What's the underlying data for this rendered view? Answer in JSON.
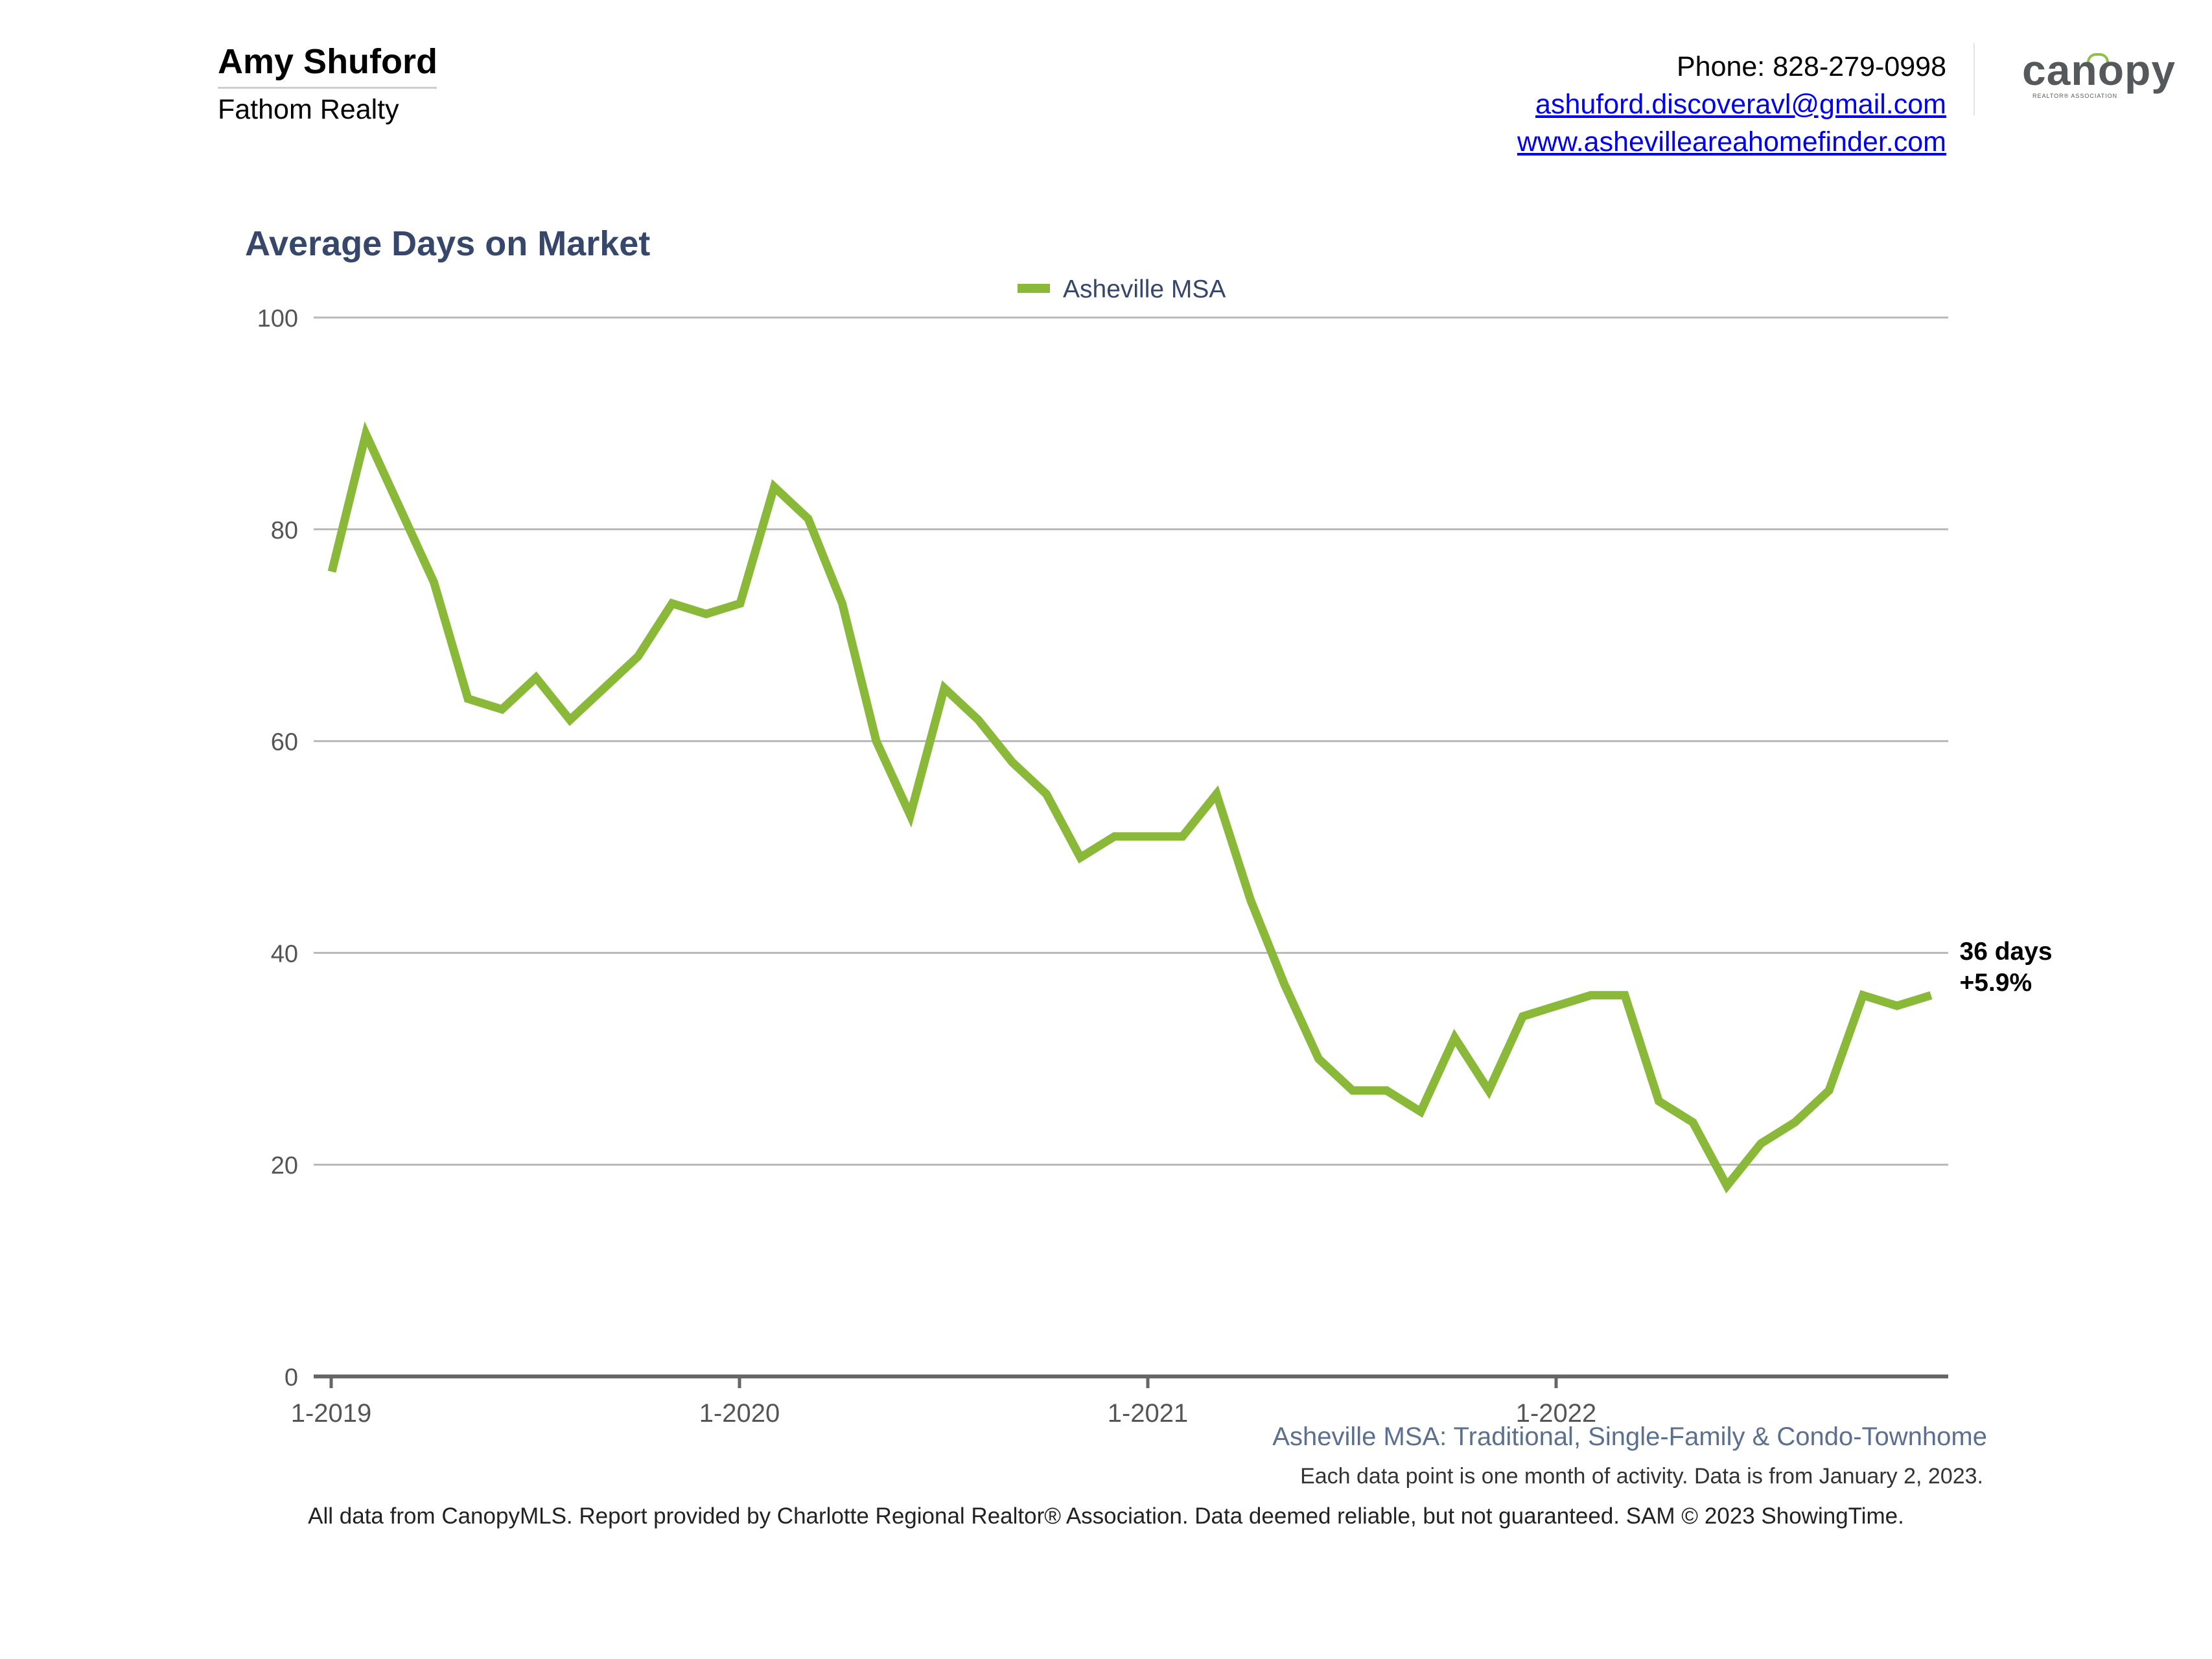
{
  "header": {
    "agent_name": "Amy Shuford",
    "company": "Fathom Realty",
    "phone": "Phone: 828-279-0998",
    "email": "ashuford.discoveravl@gmail.com",
    "website": "www.ashevilleareahomefinder.com",
    "logo_text": "canopy",
    "logo_subtext": "REALTOR® ASSOCIATION"
  },
  "colors": {
    "series_line": "#8ab93a",
    "title": "#36476b",
    "grid": "#b8b8b8",
    "axis": "#666666"
  },
  "chart_data": {
    "type": "line",
    "title": "Average Days on Market",
    "xlabel": "",
    "ylabel": "",
    "ylim": [
      0,
      100
    ],
    "yticks": [
      0,
      20,
      40,
      60,
      80,
      100
    ],
    "xtick_labels": [
      "1-2019",
      "1-2020",
      "1-2021",
      "1-2022"
    ],
    "grid": true,
    "legend": "top-center",
    "series": [
      {
        "name": "Asheville MSA",
        "start": "2019-01",
        "values": [
          76,
          89,
          82,
          75,
          64,
          63,
          66,
          62,
          65,
          68,
          73,
          72,
          73,
          84,
          81,
          73,
          60,
          53,
          65,
          62,
          58,
          55,
          49,
          51,
          51,
          51,
          55,
          45,
          37,
          30,
          27,
          27,
          25,
          32,
          27,
          34,
          35,
          36,
          36,
          26,
          24,
          18,
          22,
          24,
          27,
          36,
          35,
          36
        ]
      }
    ],
    "end_label": {
      "value": "36 days",
      "change": "+5.9%"
    }
  },
  "captions": {
    "subtitle": "Asheville MSA: Traditional, Single-Family & Condo-Townhome",
    "note": "Each data point is one month of activity. Data is from January 2, 2023.",
    "footer": "All data from CanopyMLS. Report provided by Charlotte Regional Realtor® Association. Data deemed reliable, but not guaranteed. SAM © 2023 ShowingTime."
  }
}
